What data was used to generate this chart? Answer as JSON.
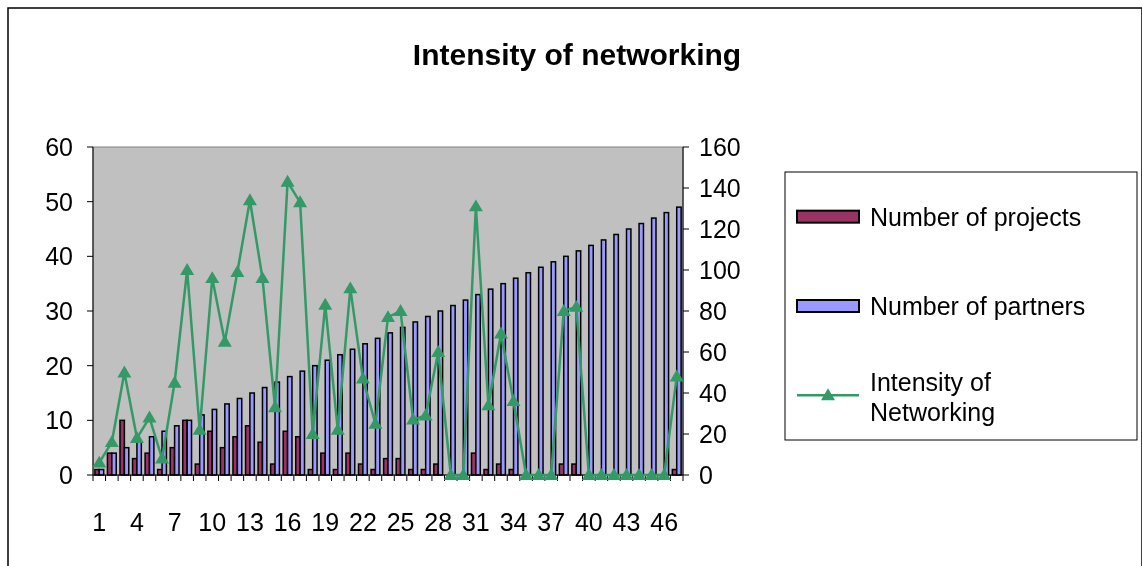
{
  "chart_data": {
    "type": "bar",
    "title": "Intensity of networking",
    "categories": [
      "1",
      null,
      null,
      "4",
      null,
      null,
      "7",
      null,
      null,
      "10",
      null,
      null,
      "13",
      null,
      null,
      "16",
      null,
      null,
      "19",
      null,
      null,
      "22",
      null,
      null,
      "25",
      null,
      null,
      "28",
      null,
      null,
      "31",
      null,
      null,
      "34",
      null,
      null,
      "37",
      null,
      null,
      "40",
      null,
      null,
      "43",
      null,
      null,
      "46",
      null
    ],
    "series": [
      {
        "name": "Number of projects",
        "color": "#993366",
        "values": [
          1,
          4,
          10,
          3,
          4,
          1,
          5,
          10,
          2,
          8,
          5,
          7,
          9,
          6,
          2,
          8,
          7,
          1,
          4,
          1,
          4,
          2,
          1,
          3,
          3,
          1,
          1,
          2,
          0,
          0,
          4,
          1,
          2,
          1,
          0,
          0,
          0,
          2,
          2,
          0,
          0,
          0,
          0,
          0,
          0,
          0,
          1
        ]
      },
      {
        "name": "Number of partners",
        "color": "#9999ff",
        "values": [
          1,
          4,
          5,
          6,
          7,
          8,
          9,
          10,
          11,
          12,
          13,
          14,
          15,
          16,
          17,
          18,
          19,
          20,
          21,
          22,
          23,
          24,
          25,
          26,
          27,
          28,
          29,
          30,
          31,
          32,
          33,
          34,
          35,
          36,
          37,
          38,
          39,
          40,
          41,
          42,
          43,
          44,
          45,
          46,
          47,
          48,
          49
        ]
      },
      {
        "name": "Intensity of Networking",
        "type": "line",
        "axis": "y2",
        "color": "#339966",
        "marker": "triangle",
        "values": [
          6,
          16,
          50,
          18,
          28,
          8,
          45,
          100,
          22,
          96,
          65,
          99,
          134,
          96,
          33,
          143,
          133,
          20,
          83,
          22,
          91,
          47,
          25,
          77,
          80,
          27,
          29,
          60,
          0,
          0,
          131,
          34,
          69,
          36,
          0,
          0,
          0,
          80,
          82,
          0,
          0,
          0,
          0,
          0,
          0,
          0,
          48
        ]
      }
    ],
    "ylim": [
      0,
      60
    ],
    "yticks": [
      0,
      10,
      20,
      30,
      40,
      50,
      60
    ],
    "y2lim": [
      0,
      160
    ],
    "y2ticks": [
      0,
      20,
      40,
      60,
      80,
      100,
      120,
      140,
      160
    ],
    "legend": "right",
    "grid": false
  }
}
